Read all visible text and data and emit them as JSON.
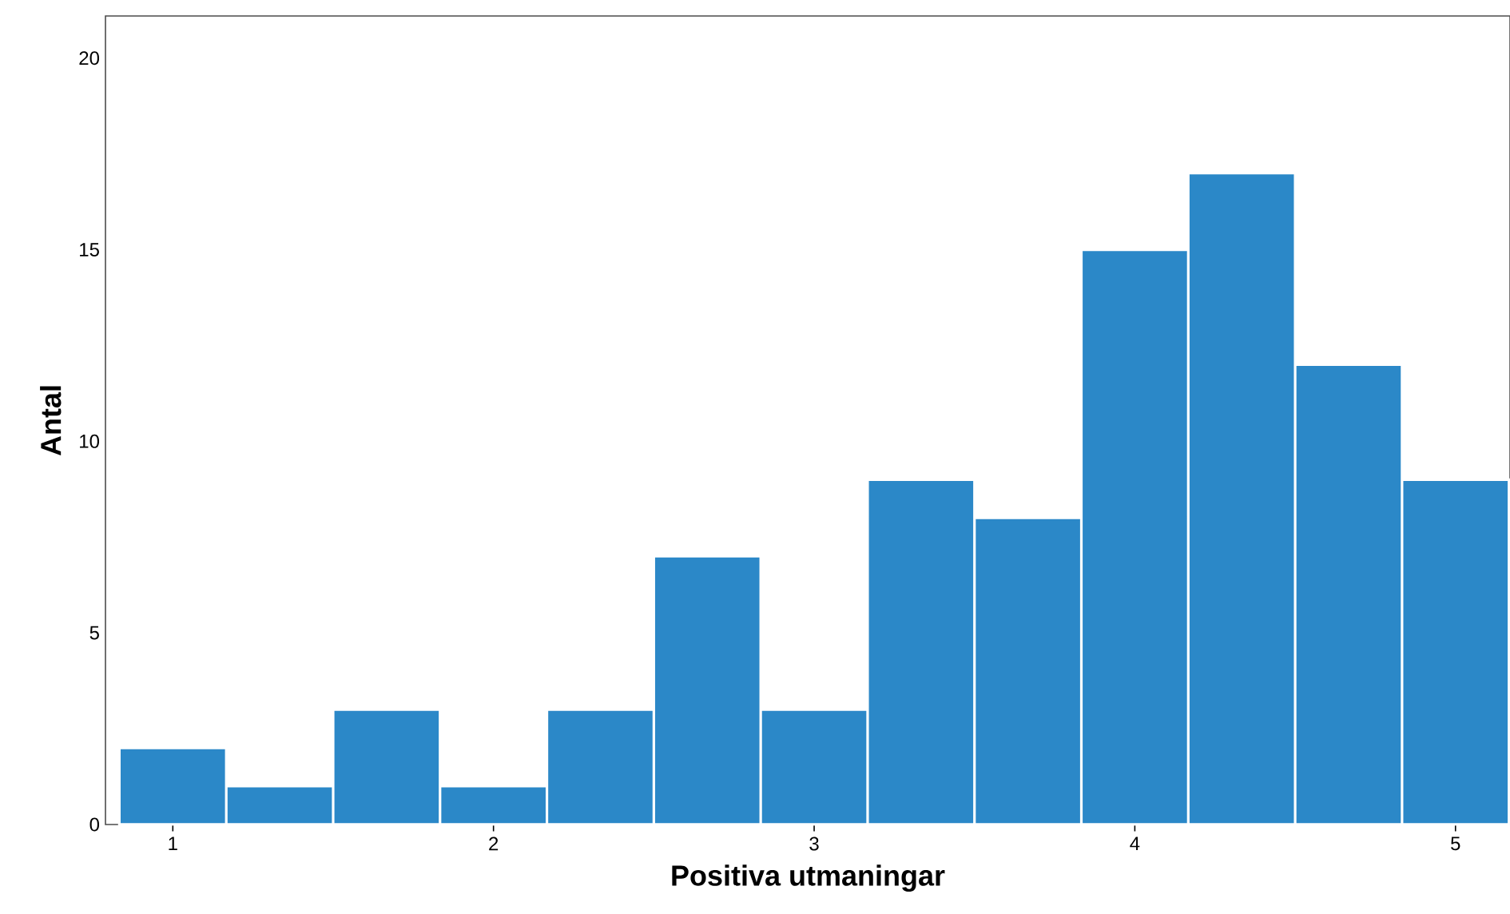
{
  "chart_data": {
    "type": "histogram",
    "xlabel": "Positiva utmaningar",
    "ylabel": "Antal",
    "bins": [
      0.8333,
      1.1667,
      1.5,
      1.8333,
      2.1667,
      2.5,
      2.8333,
      3.1667,
      3.5,
      3.8333,
      4.1667,
      4.5,
      4.8333,
      5.1667
    ],
    "values": [
      2,
      1,
      3,
      1,
      3,
      7,
      3,
      9,
      8,
      15,
      17,
      12,
      9
    ],
    "color": "#2b88c8",
    "xlim": [
      0.79,
      5.17
    ],
    "ylim": [
      0,
      21.1
    ],
    "xticks": [
      1,
      2,
      3,
      4,
      5
    ],
    "yticks": [
      0,
      5,
      10,
      15,
      20
    ]
  }
}
